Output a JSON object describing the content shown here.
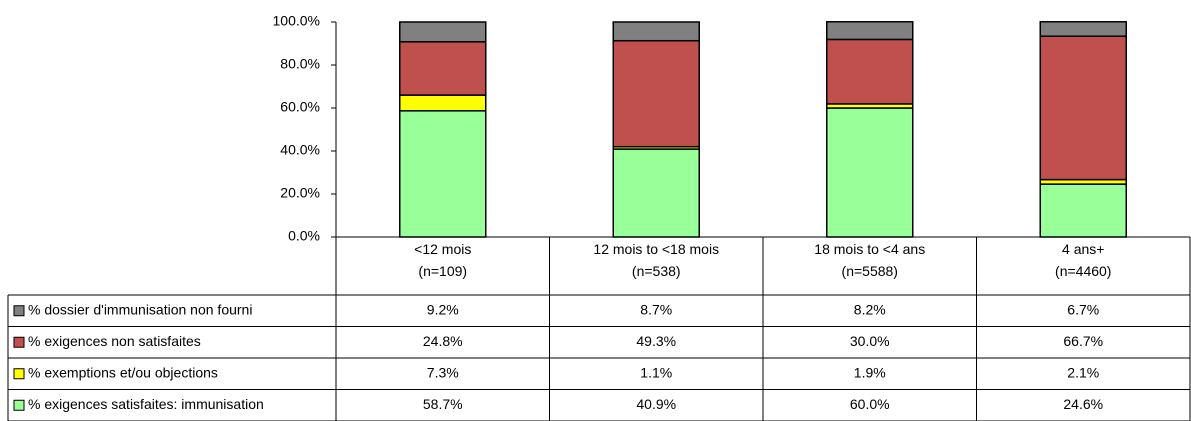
{
  "chart_data": {
    "type": "stacked_bar",
    "categories": [
      "<12 mois\n(n=109)",
      "12 mois to <18 mois\n(n=538)",
      "18 mois to <4 ans\n(n=5588)",
      "4 ans+\n(n=4460)"
    ],
    "series": [
      {
        "name": "% exigences satisfaites: immunisation",
        "color": "#99ff99",
        "values": [
          58.7,
          40.9,
          60.0,
          24.6
        ],
        "value_labels": [
          "58.7%",
          "40.9%",
          "60.0%",
          "24.6%"
        ]
      },
      {
        "name": "% exemptions et/ou objections",
        "color": "#ffff00",
        "values": [
          7.3,
          1.1,
          1.9,
          2.1
        ],
        "value_labels": [
          "7.3%",
          "1.1%",
          "1.9%",
          "2.1%"
        ]
      },
      {
        "name": "%  exigences non satisfaites",
        "color": "#c0504d",
        "values": [
          24.8,
          49.3,
          30.0,
          66.7
        ],
        "value_labels": [
          "24.8%",
          "49.3%",
          "30.0%",
          "66.7%"
        ]
      },
      {
        "name": "%  dossier d'immunisation non fourni",
        "color": "#808080",
        "values": [
          9.2,
          8.7,
          8.2,
          6.7
        ],
        "value_labels": [
          "9.2%",
          "8.7%",
          "8.2%",
          "6.7%"
        ]
      }
    ],
    "ylim": [
      0,
      100
    ],
    "yticks": [
      {
        "value": 0,
        "label": "0.0%"
      },
      {
        "value": 20,
        "label": "20.0%"
      },
      {
        "value": 40,
        "label": "40.0%"
      },
      {
        "value": 60,
        "label": "60.0%"
      },
      {
        "value": 80,
        "label": "80.0%"
      },
      {
        "value": 100,
        "label": "100.0%"
      }
    ]
  }
}
